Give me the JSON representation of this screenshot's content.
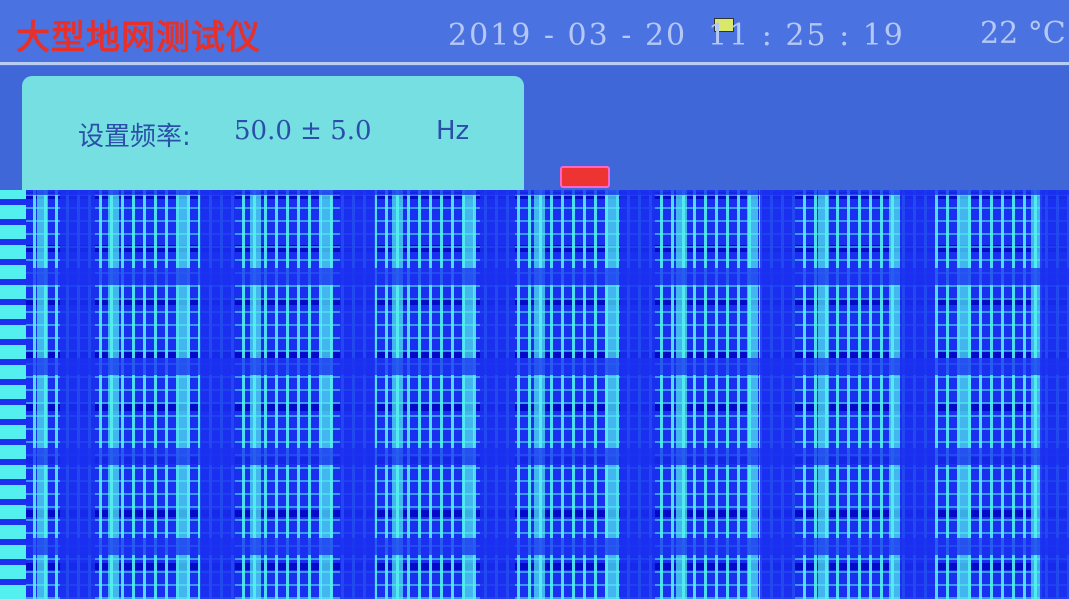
{
  "header": {
    "title": "大型地网测试仪",
    "date": "2019 - 03 - 20",
    "time": "11 : 25 : 19",
    "temperature": "22 °C"
  },
  "frequency_panel": {
    "label": "设置频率:",
    "value": "50.0  ±  5.0",
    "unit": "Hz"
  },
  "colors": {
    "background": "#3f67d8",
    "title": "#e8302a",
    "panel": "#76dfe2",
    "text": "#2b4fa8",
    "glitch_blue": "#1a2ff0",
    "glitch_cyan": "#54f0f0"
  },
  "icons": [
    "warning-icon",
    "status-icon"
  ]
}
